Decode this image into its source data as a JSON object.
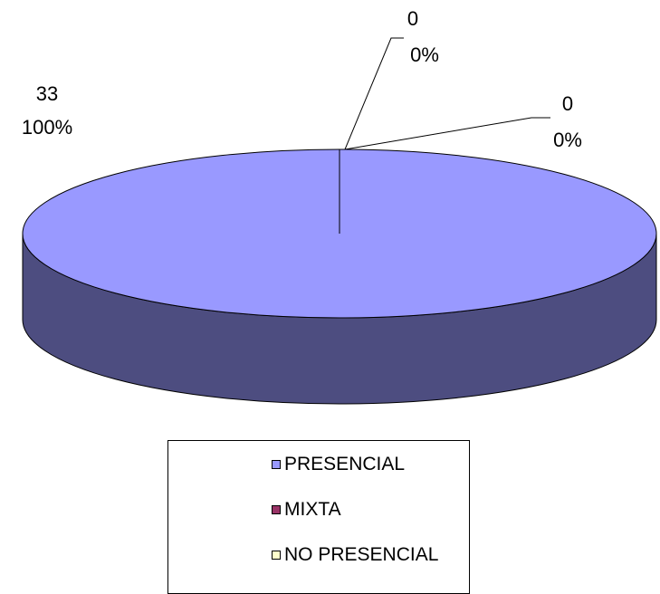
{
  "chart_data": {
    "type": "pie",
    "style": "3d",
    "categories": [
      "PRESENCIAL",
      "MIXTA",
      "NO PRESENCIAL"
    ],
    "values": [
      33,
      0,
      0
    ],
    "percent_labels": [
      "100%",
      "0%",
      "0%"
    ],
    "value_labels": [
      "33",
      "0",
      "0"
    ],
    "colors": [
      "#9999FF",
      "#993366",
      "#FFFFCC"
    ],
    "side_color": "#4D4D80",
    "legend_position": "bottom",
    "title": "",
    "legend": [
      {
        "label": "PRESENCIAL",
        "color": "#9999FF"
      },
      {
        "label": "MIXTA",
        "color": "#993366"
      },
      {
        "label": "NO PRESENCIAL",
        "color": "#FFFFCC"
      }
    ]
  }
}
